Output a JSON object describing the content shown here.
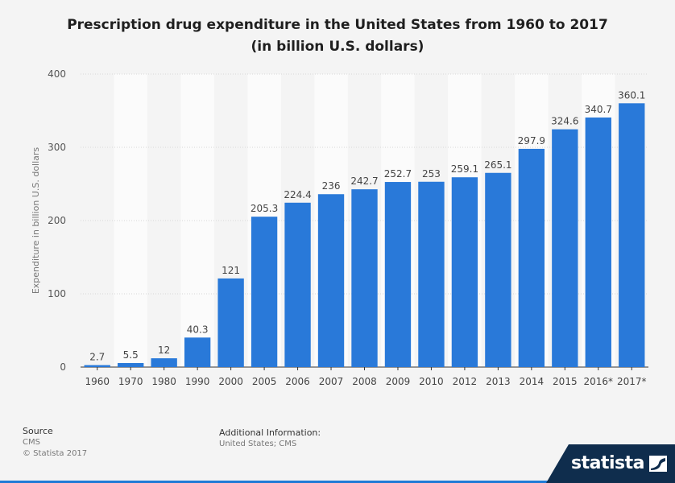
{
  "title_line1": "Prescription drug expenditure in the United States from 1960 to 2017",
  "title_line2": "(in billion U.S. dollars)",
  "chart_data": {
    "type": "bar",
    "title": "Prescription drug expenditure in the United States from 1960 to 2017 (in billion U.S. dollars)",
    "ylabel": "Expenditure in billion U.S. dollars",
    "xlabel": "",
    "ylim": [
      0,
      400
    ],
    "yticks": [
      0,
      100,
      200,
      300,
      400
    ],
    "categories": [
      "1960",
      "1970",
      "1980",
      "1990",
      "2000",
      "2005",
      "2006",
      "2007",
      "2008",
      "2009",
      "2010",
      "2012",
      "2013",
      "2014",
      "2015",
      "2016*",
      "2017*"
    ],
    "values": [
      2.7,
      5.5,
      12,
      40.3,
      121,
      205.3,
      224.4,
      236,
      242.7,
      252.7,
      253,
      259.1,
      265.1,
      297.9,
      324.6,
      340.7,
      360.1
    ],
    "value_labels": [
      "2.7",
      "5.5",
      "12",
      "40.3",
      "121",
      "205.3",
      "224.4",
      "236",
      "242.7",
      "252.7",
      "253",
      "259.1",
      "265.1",
      "297.9",
      "324.6",
      "340.7",
      "360.1"
    ],
    "bar_color": "#2979d9",
    "grid": true
  },
  "footer": {
    "source_label": "Source",
    "source_value": "CMS",
    "copyright": "© Statista 2017",
    "additional_label": "Additional Information:",
    "additional_value": "United States; CMS"
  },
  "logo_text": "statista",
  "colors": {
    "accent": "#2979d9",
    "logo_bg": "#0f2d4d"
  }
}
